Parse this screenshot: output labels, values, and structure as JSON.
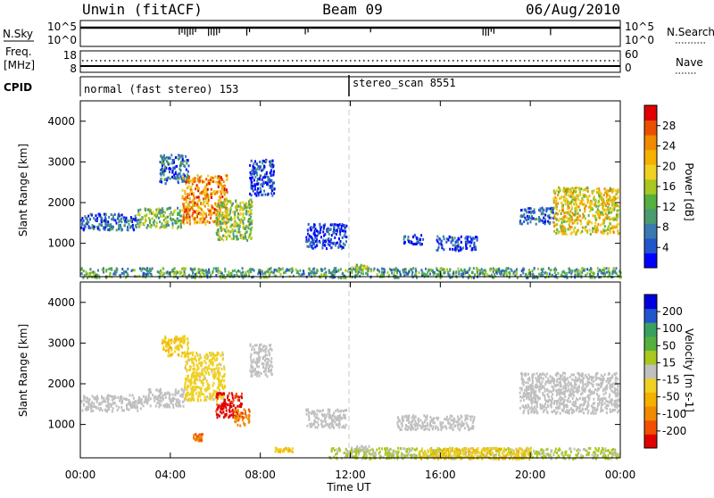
{
  "header": {
    "station": "Unwin (fitACF)",
    "beam": "Beam 09",
    "date": "06/Aug/2010"
  },
  "strip_panels": {
    "nsky_label": "N.Sky",
    "nsky_ticks": [
      "10^5",
      "10^0"
    ],
    "nsearch_label": "N.Search",
    "nsearch_ticks": [
      "10^5",
      "10^0"
    ],
    "freq_label": "Freq.",
    "freq_unit": "[MHz]",
    "freq_ticks": [
      "18",
      "8"
    ],
    "nave_label": "Nave",
    "nave_ticks": [
      "60",
      "0"
    ],
    "cpid_label": "CPID",
    "cpid_mode1": "normal (fast stereo) 153",
    "cpid_mode2": "stereo_scan 8551"
  },
  "chart_data": [
    {
      "type": "heatmap",
      "name": "power",
      "ylabel": "Slant Range [km]",
      "xlabel": "Time UT",
      "xlim": [
        "00:00",
        "24:00"
      ],
      "ylim": [
        180,
        4500
      ],
      "yticks": [
        "4000",
        "3000",
        "2000",
        "1000"
      ],
      "colorbar": {
        "label": "Power [dB]",
        "ticks": [
          "28",
          "24",
          "20",
          "16",
          "12",
          "8",
          "4"
        ],
        "range": [
          0,
          30
        ],
        "colors": [
          "#0000ff",
          "#2255cc",
          "#3a7ab0",
          "#4b9a70",
          "#55b040",
          "#a8c820",
          "#f0d020",
          "#f5b000",
          "#f08a00",
          "#e85000",
          "#e00000"
        ]
      },
      "regions": [
        {
          "t": [
            0.0,
            2.5
          ],
          "r": [
            1350,
            1750
          ],
          "v": 6
        },
        {
          "t": [
            2.5,
            4.5
          ],
          "r": [
            1400,
            1900
          ],
          "v": 12
        },
        {
          "t": [
            3.5,
            4.8
          ],
          "r": [
            2500,
            3200
          ],
          "v": 6
        },
        {
          "t": [
            4.5,
            6.5
          ],
          "r": [
            1500,
            2700
          ],
          "v": 22
        },
        {
          "t": [
            6.0,
            7.6
          ],
          "r": [
            1100,
            2100
          ],
          "v": 14
        },
        {
          "t": [
            7.5,
            8.6
          ],
          "r": [
            2200,
            3100
          ],
          "v": 4
        },
        {
          "t": [
            10.0,
            11.8
          ],
          "r": [
            900,
            1500
          ],
          "v": 3
        },
        {
          "t": [
            12.0,
            12.8
          ],
          "r": [
            350,
            500
          ],
          "v": 14
        },
        {
          "t": [
            14.3,
            15.2
          ],
          "r": [
            1000,
            1250
          ],
          "v": 4
        },
        {
          "t": [
            15.8,
            17.6
          ],
          "r": [
            850,
            1200
          ],
          "v": 3
        },
        {
          "t": [
            19.5,
            21.0
          ],
          "r": [
            1500,
            1900
          ],
          "v": 6
        },
        {
          "t": [
            21.0,
            23.9
          ],
          "r": [
            1250,
            2400
          ],
          "v": 18
        },
        {
          "t": [
            0.0,
            24.0
          ],
          "r": [
            180,
            420
          ],
          "v": 10
        }
      ]
    },
    {
      "type": "heatmap",
      "name": "velocity",
      "ylabel": "Slant Range [km]",
      "xlabel": "Time UT",
      "xlim": [
        "00:00",
        "24:00"
      ],
      "ylim": [
        180,
        4500
      ],
      "yticks": [
        "4000",
        "3000",
        "2000",
        "1000"
      ],
      "xticks": [
        "00:00",
        "04:00",
        "08:00",
        "12:00",
        "16:00",
        "20:00",
        "00:00"
      ],
      "colorbar": {
        "label": "Velocity [m s-1]",
        "ticks": [
          "200",
          "100",
          "50",
          "15",
          "-15",
          "-50",
          "-100",
          "-200"
        ],
        "range": [
          -250,
          250
        ],
        "colors": [
          "#e00000",
          "#f05000",
          "#f08a00",
          "#f5b000",
          "#f0d020",
          "#c0c0c0",
          "#a8c820",
          "#55b040",
          "#3aa060",
          "#2255cc",
          "#0000dd"
        ]
      },
      "regions": [
        {
          "t": [
            0.0,
            3.0
          ],
          "r": [
            1350,
            1750
          ],
          "v": 0
        },
        {
          "t": [
            3.0,
            4.6
          ],
          "r": [
            1450,
            1900
          ],
          "v": 0
        },
        {
          "t": [
            3.6,
            4.8
          ],
          "r": [
            2700,
            3200
          ],
          "v": -60
        },
        {
          "t": [
            4.6,
            6.4
          ],
          "r": [
            1600,
            2800
          ],
          "v": -40
        },
        {
          "t": [
            6.0,
            7.2
          ],
          "r": [
            1200,
            1800
          ],
          "v": -220
        },
        {
          "t": [
            6.8,
            7.5
          ],
          "r": [
            1000,
            1400
          ],
          "v": -150
        },
        {
          "t": [
            7.5,
            8.5
          ],
          "r": [
            2200,
            3000
          ],
          "v": 0
        },
        {
          "t": [
            5.0,
            5.4
          ],
          "r": [
            600,
            800
          ],
          "v": -150
        },
        {
          "t": [
            8.6,
            9.4
          ],
          "r": [
            350,
            450
          ],
          "v": -60
        },
        {
          "t": [
            10.0,
            11.8
          ],
          "r": [
            950,
            1400
          ],
          "v": 0
        },
        {
          "t": [
            12.0,
            12.8
          ],
          "r": [
            350,
            500
          ],
          "v": 0
        },
        {
          "t": [
            14.0,
            17.5
          ],
          "r": [
            900,
            1250
          ],
          "v": 0
        },
        {
          "t": [
            19.5,
            23.9
          ],
          "r": [
            1300,
            2300
          ],
          "v": 0
        },
        {
          "t": [
            11.0,
            24.0
          ],
          "r": [
            180,
            450
          ],
          "v": 30
        },
        {
          "t": [
            15.0,
            20.0
          ],
          "r": [
            180,
            450
          ],
          "v": -60
        }
      ]
    }
  ]
}
